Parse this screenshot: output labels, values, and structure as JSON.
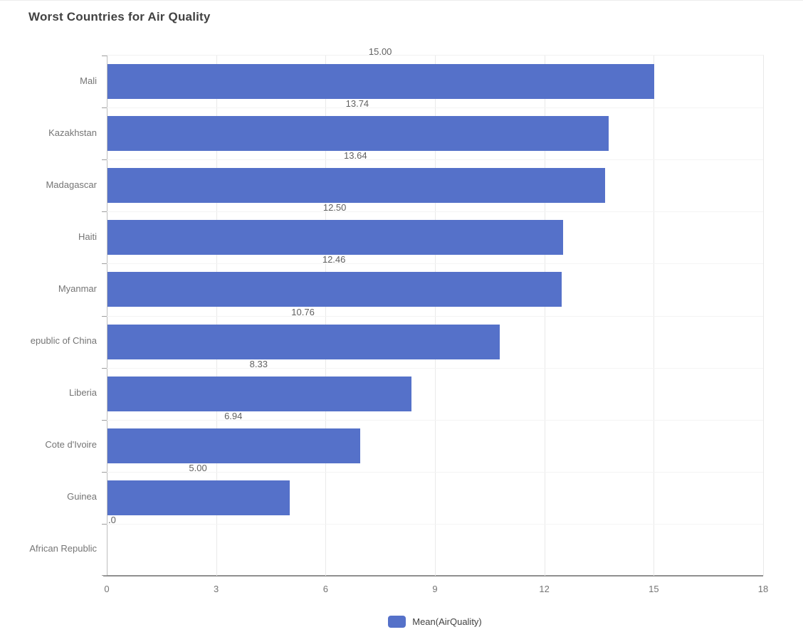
{
  "title": "Worst Countries for Air Quality",
  "legend": {
    "label": "Mean(AirQuality)",
    "swatch_color": "#5571c9"
  },
  "colors": {
    "bar": "#5571c9",
    "title_text": "#424242",
    "value_label_text": "#616161",
    "category_label_text": "#757575",
    "tick_label_text": "#757575"
  },
  "chart_data": {
    "type": "bar",
    "orientation": "horizontal",
    "title": "Worst Countries for Air Quality",
    "series_name": "Mean(AirQuality)",
    "categories": [
      "Mali",
      "Kazakhstan",
      "Madagascar",
      "Haiti",
      "Myanmar",
      "epublic of China",
      "Liberia",
      "Cote d'Ivoire",
      "Guinea",
      "African Republic"
    ],
    "values": [
      15.0,
      13.74,
      13.64,
      12.5,
      12.46,
      10.76,
      8.33,
      6.94,
      5.0,
      0.0
    ],
    "value_labels": [
      "15.00",
      "13.74",
      "13.64",
      "12.50",
      "12.46",
      "10.76",
      "8.33",
      "6.94",
      "5.00",
      ".0"
    ],
    "x_ticks": [
      "0",
      "3",
      "6",
      "9",
      "12",
      "15",
      "18"
    ],
    "x_tick_values": [
      0,
      3,
      6,
      9,
      12,
      15,
      18
    ],
    "xlim": [
      0,
      18
    ],
    "xlabel": "",
    "ylabel": "",
    "grid": true,
    "legend_position": "bottom",
    "bar_color": "#5571c9"
  }
}
